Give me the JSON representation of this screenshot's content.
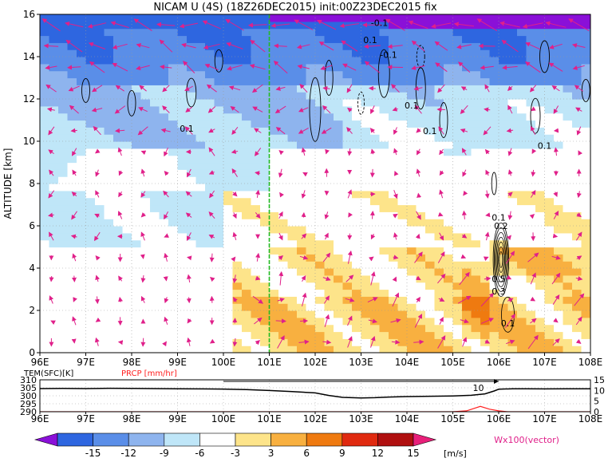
{
  "title": "NICAM U (4S) (18Z26DEC2015) init:00Z23DEC2015 fix",
  "main_chart": {
    "type": "heatmap",
    "ylabel": "ALTITUDE [km]",
    "x_ticks": [
      "96E",
      "97E",
      "98E",
      "99E",
      "100E",
      "101E",
      "102E",
      "103E",
      "104E",
      "105E",
      "106E",
      "107E",
      "108E"
    ],
    "x_values": [
      96,
      97,
      98,
      99,
      100,
      101,
      102,
      103,
      104,
      105,
      106,
      107,
      108
    ],
    "y_ticks": [
      "0",
      "2",
      "4",
      "6",
      "8",
      "10",
      "12",
      "14",
      "16"
    ],
    "y_values": [
      0,
      2,
      4,
      6,
      8,
      10,
      12,
      14,
      16
    ],
    "xlim": [
      96,
      108
    ],
    "ylim": [
      0,
      16
    ],
    "marker_line_lon": 101,
    "contour_labels": [
      {
        "text": "-0.1",
        "lon": 103.4,
        "alt": 15.6
      },
      {
        "text": "0.1",
        "lon": 103.2,
        "alt": 14.8
      },
      {
        "text": "-0.1",
        "lon": 103.6,
        "alt": 14.1
      },
      {
        "text": "0.1",
        "lon": 99.2,
        "alt": 10.6
      },
      {
        "text": "0.1",
        "lon": 104.1,
        "alt": 11.7
      },
      {
        "text": "0.1",
        "lon": 104.5,
        "alt": 10.5
      },
      {
        "text": "0.1",
        "lon": 107.0,
        "alt": 9.8
      },
      {
        "text": "0.1",
        "lon": 106.0,
        "alt": 6.4
      },
      {
        "text": "0.2",
        "lon": 106.05,
        "alt": 6.0
      },
      {
        "text": "0.5",
        "lon": 106.0,
        "alt": 3.5
      },
      {
        "text": "0.3",
        "lon": 106.0,
        "alt": 2.9
      },
      {
        "text": "0.1",
        "lon": 106.2,
        "alt": 1.4
      }
    ]
  },
  "sub_chart": {
    "type": "line",
    "left_label": "TEM(SFC)[K]",
    "right_label": "PRCP [mm/hr]",
    "left_ticks": [
      "310",
      "305",
      "300",
      "295",
      "290"
    ],
    "right_ticks": [
      "15",
      "10",
      "5",
      "0"
    ],
    "x_ticks": [
      "96E",
      "97E",
      "98E",
      "99E",
      "100E",
      "101E",
      "102E",
      "103E",
      "104E",
      "105E",
      "106E",
      "107E",
      "108E"
    ],
    "marker_label": "10",
    "series": [
      {
        "name": "TEM(SFC)[K]",
        "color": "#000000",
        "x": [
          96,
          96.5,
          97,
          97.5,
          98,
          98.5,
          99,
          99.5,
          100,
          100.5,
          101,
          101.5,
          102,
          102.3,
          102.6,
          103,
          103.3,
          103.6,
          104,
          104.5,
          105,
          105.4,
          105.7,
          105.9,
          106,
          106.3,
          106.6,
          107,
          107.5,
          108
        ],
        "y": [
          304.5,
          304.6,
          304.5,
          304.7,
          304.6,
          304.5,
          304.4,
          304.3,
          304.2,
          303.9,
          303.3,
          302.6,
          301.8,
          300.2,
          299.0,
          298.6,
          298.8,
          299.2,
          299.5,
          299.7,
          299.9,
          300.3,
          301.2,
          303.0,
          304.1,
          304.4,
          304.4,
          304.3,
          304.4,
          304.4
        ]
      },
      {
        "name": "PRCP [mm/hr]",
        "color": "#ff2020",
        "x": [
          96,
          101,
          102,
          103,
          104,
          105,
          105.3,
          105.6,
          105.8,
          106.0,
          106.2,
          106.5,
          107,
          108
        ],
        "y": [
          0,
          0,
          0,
          0,
          0,
          0,
          0.4,
          2.5,
          1.2,
          0.4,
          0,
          0,
          0,
          0
        ]
      }
    ]
  },
  "colorbar": {
    "values": [
      "-15",
      "-12",
      "-9",
      "-6",
      "-3",
      "3",
      "6",
      "9",
      "12",
      "15"
    ],
    "colors": [
      "#8a10d8",
      "#2e66e0",
      "#5a8ee8",
      "#8eb4ee",
      "#bfe6f8",
      "#ffffff",
      "#fde48a",
      "#f8b040",
      "#ef7a10",
      "#e02a10",
      "#b01010",
      "#e8207a"
    ],
    "unit": "[m/s]",
    "vector_label": "Wx100(vector)"
  }
}
